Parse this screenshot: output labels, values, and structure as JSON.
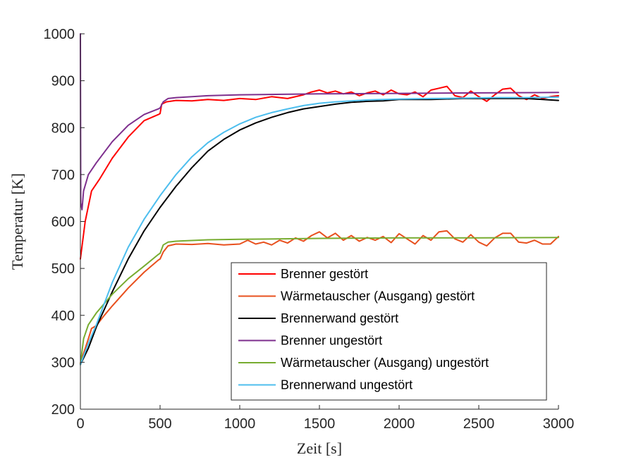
{
  "chart_data": {
    "type": "line",
    "xlabel": "Zeit [s]",
    "ylabel": "Temperatur [K]",
    "xlim": [
      0,
      3000
    ],
    "ylim": [
      200,
      1000
    ],
    "xticks": [
      0,
      500,
      1000,
      1500,
      2000,
      2500,
      3000
    ],
    "yticks": [
      200,
      300,
      400,
      500,
      600,
      700,
      800,
      900,
      1000
    ],
    "grid": false,
    "legend_placement": "bottom-right",
    "series": [
      {
        "name": "Brenner gestört",
        "color": "#ff0000",
        "points": [
          [
            0,
            520
          ],
          [
            30,
            600
          ],
          [
            70,
            665
          ],
          [
            120,
            690
          ],
          [
            200,
            735
          ],
          [
            300,
            780
          ],
          [
            400,
            815
          ],
          [
            490,
            828
          ],
          [
            500,
            830
          ],
          [
            510,
            850
          ],
          [
            540,
            855
          ],
          [
            600,
            858
          ],
          [
            700,
            857
          ],
          [
            800,
            860
          ],
          [
            900,
            858
          ],
          [
            1000,
            862
          ],
          [
            1100,
            860
          ],
          [
            1200,
            866
          ],
          [
            1300,
            862
          ],
          [
            1400,
            870
          ],
          [
            1450,
            876
          ],
          [
            1500,
            880
          ],
          [
            1550,
            874
          ],
          [
            1600,
            878
          ],
          [
            1650,
            872
          ],
          [
            1700,
            876
          ],
          [
            1750,
            868
          ],
          [
            1800,
            874
          ],
          [
            1850,
            878
          ],
          [
            1900,
            870
          ],
          [
            1950,
            880
          ],
          [
            2000,
            872
          ],
          [
            2050,
            870
          ],
          [
            2100,
            876
          ],
          [
            2150,
            866
          ],
          [
            2200,
            880
          ],
          [
            2250,
            884
          ],
          [
            2300,
            888
          ],
          [
            2350,
            868
          ],
          [
            2400,
            864
          ],
          [
            2450,
            878
          ],
          [
            2500,
            866
          ],
          [
            2550,
            856
          ],
          [
            2600,
            870
          ],
          [
            2650,
            882
          ],
          [
            2700,
            884
          ],
          [
            2750,
            868
          ],
          [
            2800,
            860
          ],
          [
            2850,
            870
          ],
          [
            2900,
            862
          ],
          [
            2950,
            866
          ],
          [
            3000,
            868
          ]
        ]
      },
      {
        "name": "Wärmetauscher (Ausgang) gestört",
        "color": "#e8501e",
        "points": [
          [
            0,
            298
          ],
          [
            50,
            350
          ],
          [
            70,
            372
          ],
          [
            100,
            378
          ],
          [
            150,
            400
          ],
          [
            200,
            420
          ],
          [
            300,
            458
          ],
          [
            400,
            492
          ],
          [
            490,
            518
          ],
          [
            500,
            520
          ],
          [
            520,
            535
          ],
          [
            550,
            548
          ],
          [
            600,
            552
          ],
          [
            700,
            551
          ],
          [
            800,
            553
          ],
          [
            900,
            550
          ],
          [
            1000,
            552
          ],
          [
            1050,
            560
          ],
          [
            1100,
            552
          ],
          [
            1150,
            556
          ],
          [
            1200,
            550
          ],
          [
            1250,
            560
          ],
          [
            1300,
            554
          ],
          [
            1350,
            565
          ],
          [
            1400,
            558
          ],
          [
            1450,
            570
          ],
          [
            1500,
            578
          ],
          [
            1550,
            565
          ],
          [
            1600,
            575
          ],
          [
            1650,
            560
          ],
          [
            1700,
            570
          ],
          [
            1750,
            558
          ],
          [
            1800,
            566
          ],
          [
            1850,
            560
          ],
          [
            1900,
            568
          ],
          [
            1950,
            555
          ],
          [
            2000,
            574
          ],
          [
            2050,
            563
          ],
          [
            2100,
            552
          ],
          [
            2150,
            570
          ],
          [
            2200,
            560
          ],
          [
            2250,
            578
          ],
          [
            2300,
            580
          ],
          [
            2350,
            563
          ],
          [
            2400,
            556
          ],
          [
            2450,
            572
          ],
          [
            2500,
            556
          ],
          [
            2550,
            548
          ],
          [
            2600,
            565
          ],
          [
            2650,
            575
          ],
          [
            2700,
            575
          ],
          [
            2750,
            556
          ],
          [
            2800,
            554
          ],
          [
            2850,
            560
          ],
          [
            2900,
            552
          ],
          [
            2950,
            552
          ],
          [
            3000,
            568
          ]
        ]
      },
      {
        "name": "Brennerwand gestört",
        "color": "#000000",
        "points": [
          [
            0,
            295
          ],
          [
            50,
            330
          ],
          [
            100,
            375
          ],
          [
            200,
            450
          ],
          [
            300,
            520
          ],
          [
            400,
            580
          ],
          [
            500,
            630
          ],
          [
            600,
            675
          ],
          [
            700,
            715
          ],
          [
            800,
            750
          ],
          [
            900,
            775
          ],
          [
            1000,
            795
          ],
          [
            1100,
            810
          ],
          [
            1200,
            822
          ],
          [
            1300,
            832
          ],
          [
            1400,
            840
          ],
          [
            1500,
            845
          ],
          [
            1600,
            850
          ],
          [
            1700,
            854
          ],
          [
            1800,
            856
          ],
          [
            1900,
            857
          ],
          [
            2000,
            860
          ],
          [
            2200,
            860
          ],
          [
            2400,
            862
          ],
          [
            2600,
            862
          ],
          [
            2800,
            862
          ],
          [
            3000,
            858
          ]
        ]
      },
      {
        "name": "Brenner ungestört",
        "color": "#7e2f8e",
        "points": [
          [
            0,
            1000
          ],
          [
            2,
            640
          ],
          [
            10,
            625
          ],
          [
            20,
            665
          ],
          [
            50,
            700
          ],
          [
            100,
            725
          ],
          [
            200,
            770
          ],
          [
            300,
            805
          ],
          [
            400,
            828
          ],
          [
            490,
            840
          ],
          [
            500,
            842
          ],
          [
            520,
            855
          ],
          [
            550,
            862
          ],
          [
            600,
            864
          ],
          [
            800,
            868
          ],
          [
            1000,
            870
          ],
          [
            1500,
            872
          ],
          [
            2000,
            873
          ],
          [
            2500,
            874
          ],
          [
            3000,
            875
          ]
        ]
      },
      {
        "name": "Wärmetauscher (Ausgang) ungestört",
        "color": "#77ac30",
        "points": [
          [
            0,
            295
          ],
          [
            20,
            350
          ],
          [
            50,
            380
          ],
          [
            100,
            405
          ],
          [
            200,
            445
          ],
          [
            300,
            478
          ],
          [
            400,
            505
          ],
          [
            490,
            530
          ],
          [
            500,
            532
          ],
          [
            520,
            550
          ],
          [
            550,
            556
          ],
          [
            600,
            558
          ],
          [
            800,
            561
          ],
          [
            1000,
            562
          ],
          [
            1500,
            564
          ],
          [
            2000,
            565
          ],
          [
            2500,
            565
          ],
          [
            3000,
            566
          ]
        ]
      },
      {
        "name": "Brennerwand ungestört",
        "color": "#4dbeee",
        "points": [
          [
            0,
            295
          ],
          [
            50,
            340
          ],
          [
            100,
            380
          ],
          [
            200,
            470
          ],
          [
            300,
            545
          ],
          [
            400,
            605
          ],
          [
            500,
            655
          ],
          [
            600,
            700
          ],
          [
            700,
            738
          ],
          [
            800,
            768
          ],
          [
            900,
            790
          ],
          [
            1000,
            808
          ],
          [
            1100,
            822
          ],
          [
            1200,
            832
          ],
          [
            1300,
            840
          ],
          [
            1400,
            847
          ],
          [
            1500,
            852
          ],
          [
            1600,
            855
          ],
          [
            1700,
            857
          ],
          [
            1800,
            859
          ],
          [
            1900,
            860
          ],
          [
            2000,
            861
          ],
          [
            2200,
            862
          ],
          [
            2400,
            863
          ],
          [
            2600,
            864
          ],
          [
            2800,
            864
          ],
          [
            3000,
            865
          ]
        ]
      }
    ]
  }
}
